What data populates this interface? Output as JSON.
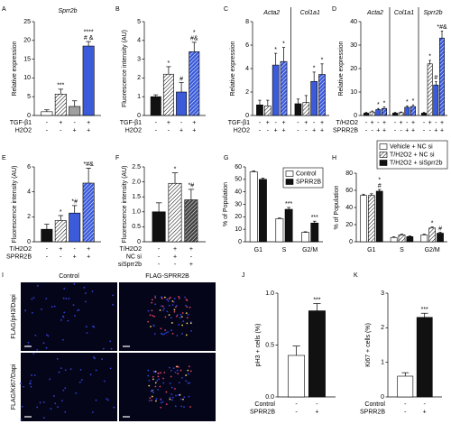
{
  "chart_data": [
    {
      "type": "bar",
      "panel": "A",
      "title": "Sprr2b",
      "ylabel": "Relative expression",
      "ylim": [
        0,
        25
      ],
      "yticks": [
        0,
        5,
        10,
        15,
        20,
        25
      ],
      "values": [
        1,
        5.7,
        2.4,
        18.5
      ],
      "errors": [
        0.5,
        1.3,
        1.5,
        1.2
      ],
      "colors": [
        "#ffffff",
        "#ffffff",
        "#a0a0a0",
        "#3b5bdb"
      ],
      "hatch": [
        false,
        true,
        false,
        false
      ],
      "labels": [
        null,
        [
          "***"
        ],
        null,
        [
          "****",
          "# &"
        ]
      ],
      "conditions": [
        {
          "name": "TGF-β1",
          "signs": [
            "-",
            "+",
            "-",
            "+"
          ]
        },
        {
          "name": "H2O2",
          "signs": [
            "-",
            "-",
            "+",
            "+"
          ]
        }
      ]
    },
    {
      "type": "bar",
      "panel": "B",
      "ylabel": "Fluorescence intensity (AU)",
      "ylim": [
        0,
        5
      ],
      "yticks": [
        0,
        1,
        2,
        3,
        4,
        5
      ],
      "values": [
        1.0,
        2.2,
        1.25,
        3.4
      ],
      "errors": [
        0.1,
        0.4,
        0.5,
        0.5
      ],
      "colors": [
        "#111111",
        "#ffffff",
        "#3b5bdb",
        "#3b5bdb"
      ],
      "hatch": [
        false,
        true,
        false,
        true
      ],
      "labels": [
        null,
        [
          "*"
        ],
        [
          "#"
        ],
        [
          "*",
          "#&"
        ]
      ],
      "conditions": [
        {
          "name": "TGF-β1",
          "signs": [
            "-",
            "+",
            "-",
            "+"
          ]
        },
        {
          "name": "H2O2",
          "signs": [
            "-",
            "-",
            "+",
            "+"
          ]
        }
      ]
    },
    {
      "type": "bar",
      "panel": "C",
      "ylabel": "Relative expression",
      "ylim": [
        0,
        8
      ],
      "yticks": [
        0,
        2,
        4,
        6,
        8
      ],
      "categories": [
        "Acta2",
        "Col1a1"
      ],
      "series": [
        {
          "color": "#111111",
          "hatch": false,
          "values": [
            0.9,
            1.0
          ],
          "errors": [
            0.4,
            0.4
          ],
          "labels": [
            null,
            null
          ]
        },
        {
          "color": "#ffffff",
          "hatch": true,
          "values": [
            0.8,
            1.1
          ],
          "errors": [
            0.5,
            0.6
          ],
          "labels": [
            null,
            null
          ]
        },
        {
          "color": "#3b5bdb",
          "hatch": false,
          "values": [
            4.3,
            2.9
          ],
          "errors": [
            1.0,
            0.8
          ],
          "labels": [
            [
              "*"
            ],
            [
              "*"
            ]
          ]
        },
        {
          "color": "#3b5bdb",
          "hatch": true,
          "values": [
            4.6,
            3.5
          ],
          "errors": [
            1.2,
            0.9
          ],
          "labels": [
            [
              "*"
            ],
            [
              "*"
            ]
          ]
        }
      ],
      "conditions": [
        {
          "name": "TGF-β1",
          "signs": [
            "-",
            "+",
            "-",
            "+",
            "-",
            "+",
            "-",
            "+"
          ]
        },
        {
          "name": "H2O2",
          "signs": [
            "-",
            "-",
            "+",
            "+",
            "-",
            "-",
            "+",
            "+"
          ]
        }
      ]
    },
    {
      "type": "bar",
      "panel": "D",
      "ylabel": "Relative expression",
      "ylim": [
        0,
        40
      ],
      "yticks": [
        0,
        10,
        20,
        30,
        40
      ],
      "categories": [
        "Acta2",
        "Col1a1",
        "Sprr2b"
      ],
      "series": [
        {
          "color": "#111111",
          "hatch": false,
          "values": [
            1,
            1,
            1
          ],
          "errors": [
            0.3,
            0.3,
            0.3
          ],
          "labels": [
            null,
            null,
            null
          ]
        },
        {
          "color": "#ffffff",
          "hatch": true,
          "values": [
            1.5,
            1.2,
            22
          ],
          "errors": [
            0.4,
            0.3,
            1.5
          ],
          "labels": [
            null,
            null,
            [
              "*"
            ]
          ]
        },
        {
          "color": "#3b5bdb",
          "hatch": false,
          "values": [
            2.5,
            3.5,
            13
          ],
          "errors": [
            0.5,
            0.6,
            1.5
          ],
          "labels": [
            [
              "*"
            ],
            [
              "*"
            ],
            [
              "#"
            ]
          ]
        },
        {
          "color": "#3b5bdb",
          "hatch": true,
          "values": [
            3,
            3.8,
            33
          ],
          "errors": [
            0.6,
            0.7,
            3
          ],
          "labels": [
            [
              "*"
            ],
            [
              "*"
            ],
            [
              "*#&"
            ]
          ]
        }
      ],
      "conditions": [
        {
          "name": "T/H2O2",
          "signs": [
            "-",
            "+",
            "-",
            "+",
            "-",
            "+",
            "-",
            "+",
            "-",
            "+",
            "-",
            "+"
          ]
        },
        {
          "name": "SPRR2B",
          "signs": [
            "-",
            "-",
            "+",
            "+",
            "-",
            "-",
            "+",
            "+",
            "-",
            "-",
            "+",
            "+"
          ]
        }
      ]
    },
    {
      "type": "bar",
      "panel": "E",
      "ylabel": "Fluorescence intensity (AU)",
      "ylim": [
        0,
        6
      ],
      "yticks": [
        0,
        2,
        4,
        6
      ],
      "values": [
        1,
        1.7,
        2.3,
        4.7
      ],
      "errors": [
        0.4,
        0.4,
        0.6,
        1.2
      ],
      "colors": [
        "#111111",
        "#ffffff",
        "#3b5bdb",
        "#3b5bdb"
      ],
      "hatch": [
        false,
        true,
        false,
        true
      ],
      "labels": [
        null,
        [
          "*"
        ],
        [
          "*#"
        ],
        [
          "*#&"
        ]
      ],
      "conditions": [
        {
          "name": "T/H2O2",
          "signs": [
            "-",
            "+",
            "-",
            "+"
          ]
        },
        {
          "name": "SPRR2B",
          "signs": [
            "-",
            "-",
            "+",
            "+"
          ]
        }
      ]
    },
    {
      "type": "bar",
      "panel": "F",
      "ylabel": "Fluorescence intensity (AU)",
      "ylim": [
        0,
        2.5
      ],
      "yticks": [
        0,
        0.5,
        {
          "value": 1,
          "label": "1.0"
        },
        1.5,
        {
          "value": 2,
          "label": "2.0"
        },
        2.5
      ],
      "values": [
        1.0,
        1.95,
        1.4
      ],
      "errors": [
        0.3,
        0.35,
        0.35
      ],
      "colors": [
        "#111111",
        "#ffffff",
        "#444444"
      ],
      "hatch": [
        false,
        true,
        true
      ],
      "labels": [
        null,
        [
          "*"
        ],
        [
          "*#"
        ]
      ],
      "conditions": [
        {
          "name": "T/H2O2",
          "signs": [
            "-",
            "+",
            "+"
          ]
        },
        {
          "name": "NC si",
          "signs": [
            "-",
            "+",
            "-"
          ]
        },
        {
          "name": "siSprr2b",
          "signs": [
            "-",
            "-",
            "+"
          ]
        }
      ]
    },
    {
      "type": "bar",
      "panel": "G",
      "ylabel": "% of Population",
      "ylim": [
        0,
        60
      ],
      "yticks": [
        0,
        10,
        20,
        30,
        40,
        50,
        60
      ],
      "legend": "upper right",
      "categories": [
        "G1",
        "S",
        "G2/M"
      ],
      "series": [
        {
          "name": "Control",
          "color": "#ffffff",
          "hatch": false,
          "values": [
            56,
            18.5,
            7.5
          ],
          "errors": [
            0.8,
            0.5,
            0.5
          ],
          "labels": [
            null,
            null,
            null
          ]
        },
        {
          "name": "SPRR2B",
          "color": "#111111",
          "hatch": false,
          "values": [
            50,
            26,
            15
          ],
          "errors": [
            1,
            1.5,
            1.5
          ],
          "labels": [
            null,
            [
              "***"
            ],
            [
              "***"
            ]
          ]
        }
      ]
    },
    {
      "type": "bar",
      "panel": "H",
      "ylabel": "% of Population",
      "ylim": [
        0,
        80
      ],
      "yticks": [
        0,
        20,
        40,
        60,
        80
      ],
      "legend": "top",
      "categories": [
        "G1",
        "S",
        "G2/M"
      ],
      "series": [
        {
          "name": "Vehicle + NC si",
          "color": "#ffffff",
          "hatch": false,
          "values": [
            54,
            5,
            8
          ],
          "errors": [
            1.5,
            0.8,
            0.8
          ],
          "labels": [
            null,
            null,
            null
          ]
        },
        {
          "name": "T/H2O2 + NC si",
          "color": "#ffffff",
          "hatch": true,
          "values": [
            54,
            8,
            16
          ],
          "errors": [
            2,
            0.8,
            1.2
          ],
          "labels": [
            null,
            null,
            [
              "*"
            ]
          ]
        },
        {
          "name": "T/H2O2 + siSprr2b",
          "color": "#111111",
          "hatch": false,
          "values": [
            59,
            6,
            10
          ],
          "errors": [
            2,
            0.8,
            1
          ],
          "labels": [
            [
              "*",
              "#"
            ],
            null,
            [
              "#"
            ]
          ]
        }
      ]
    },
    {
      "type": "image",
      "panel": "I",
      "columns": [
        "Control",
        "FLAG-SPRR2B"
      ],
      "rows": [
        "FLAG/pH3/Dapi",
        "FLAG/Ki67/Dapi"
      ]
    },
    {
      "type": "bar",
      "panel": "J",
      "ylabel": "pH3 + cells (%)",
      "ylim": [
        0,
        1
      ],
      "yticks": [
        {
          "value": 0,
          "label": "0.0"
        },
        0.5,
        {
          "value": 1,
          "label": "1.0"
        }
      ],
      "values": [
        0.4,
        0.83
      ],
      "errors": [
        0.09,
        0.07
      ],
      "colors": [
        "#ffffff",
        "#111111"
      ],
      "hatch": [
        false,
        false
      ],
      "labels": [
        null,
        [
          "***"
        ]
      ],
      "conditions": [
        {
          "name": "Control",
          "signs": [
            "-",
            "-"
          ]
        },
        {
          "name": "SPRR2B",
          "signs": [
            "-",
            "+"
          ]
        }
      ]
    },
    {
      "type": "bar",
      "panel": "K",
      "ylabel": "Ki67 + cells (%)",
      "ylim": [
        0,
        3
      ],
      "yticks": [
        0,
        1,
        2,
        3
      ],
      "values": [
        0.6,
        2.3
      ],
      "errors": [
        0.1,
        0.12
      ],
      "colors": [
        "#ffffff",
        "#111111"
      ],
      "hatch": [
        false,
        false
      ],
      "labels": [
        null,
        [
          "***"
        ]
      ],
      "conditions": [
        {
          "name": "Control",
          "signs": [
            "-",
            "-"
          ]
        },
        {
          "name": "SPRR2B",
          "signs": [
            "-",
            "+"
          ]
        }
      ]
    }
  ]
}
